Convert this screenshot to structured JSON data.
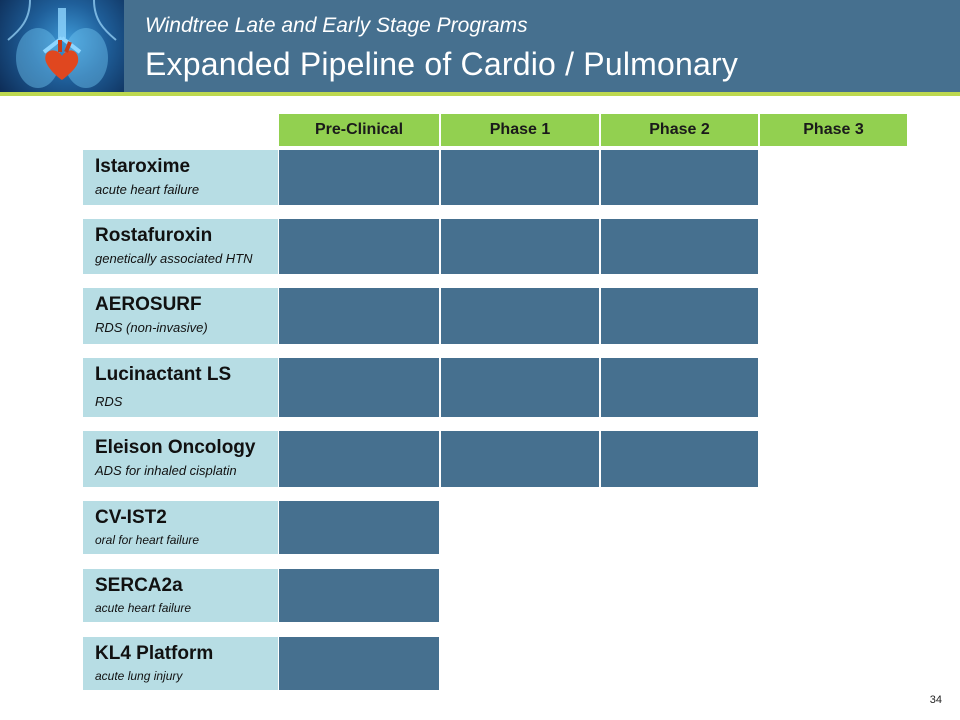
{
  "header": {
    "subtitle": "Windtree Late and Early Stage Programs",
    "title": "Expanded Pipeline of Cardio / Pulmonary"
  },
  "phases": [
    "Pre-Clinical",
    "Phase 1",
    "Phase 2",
    "Phase 3"
  ],
  "programs": [
    {
      "name": "Istaroxime",
      "indication": "acute heart failure",
      "stages_completed": 3
    },
    {
      "name": "Rostafuroxin",
      "indication": "genetically associated HTN",
      "stages_completed": 3
    },
    {
      "name": "AEROSURF",
      "indication": "RDS (non-invasive)",
      "stages_completed": 3
    },
    {
      "name": "Lucinactant LS",
      "indication": "RDS",
      "stages_completed": 3
    },
    {
      "name": "Eleison Oncology",
      "indication": "ADS for inhaled cisplatin",
      "stages_completed": 3
    },
    {
      "name": "CV-IST2",
      "indication": "oral for heart failure",
      "stages_completed": 1
    },
    {
      "name": "SERCA2a",
      "indication": "acute heart failure",
      "stages_completed": 1
    },
    {
      "name": "KL4 Platform",
      "indication": "acute lung injury",
      "stages_completed": 1
    }
  ],
  "page_number": "34",
  "colors": {
    "header": "#46708f",
    "accent_line": "#bdd84f",
    "phase_header": "#92d050",
    "label_bg": "#b7dde4",
    "bar": "#46708f"
  }
}
